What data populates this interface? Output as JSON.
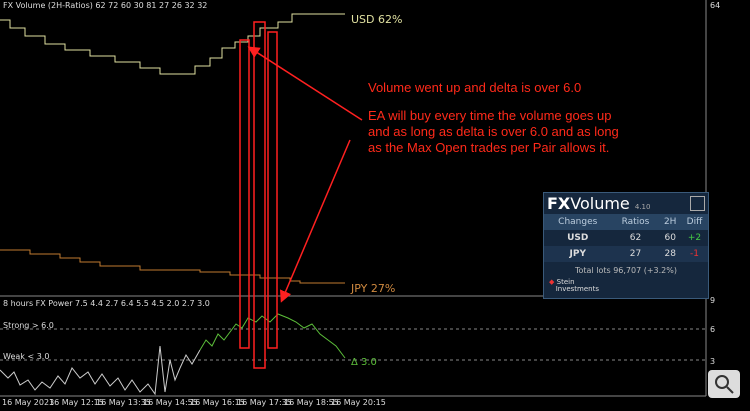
{
  "top_panel": {
    "title": "FX Volume (2H-Ratios) 62 72 60 30 81 27 26 32 32",
    "usd_label": "USD 62%",
    "jpy_label": "JPY 27%",
    "axis_label": "64"
  },
  "annotation": {
    "headline": "Volume went up and delta is over 6.0",
    "body_lines": [
      "EA will buy every time the volume goes up",
      "and as long as delta is over 6.0 and as long",
      "as the Max Open trades per Pair allows it."
    ]
  },
  "widget": {
    "brand_fx": "FX",
    "brand_volume": "Volume",
    "version": "4.10",
    "headers": [
      "Changes",
      "Ratios",
      "2H",
      "Diff"
    ],
    "rows": [
      [
        "USD",
        "62",
        "60",
        "+2"
      ],
      [
        "JPY",
        "27",
        "28",
        "-1"
      ]
    ],
    "footer": "Total lots 96,707 (+3.2%)",
    "logo_line1": "Stein",
    "logo_line2": "Investments"
  },
  "bottom_panel": {
    "title": "8 hours FX Power 7.5 4.4 2.7 6.4 5.5 4.5 2.0 2.7 3.0",
    "strong_label": "Strong > 6.0",
    "weak_label": "Weak < 3.0",
    "current_label": "Δ 3.0",
    "axis_labels": [
      "9",
      "6",
      "3"
    ]
  },
  "time_axis": [
    "16 May 2023",
    "16 May 12:15",
    "16 May 13:35",
    "16 May 14:55",
    "16 May 16:15",
    "16 May 17:35",
    "16 May 18:55",
    "16 May 20:15"
  ]
}
